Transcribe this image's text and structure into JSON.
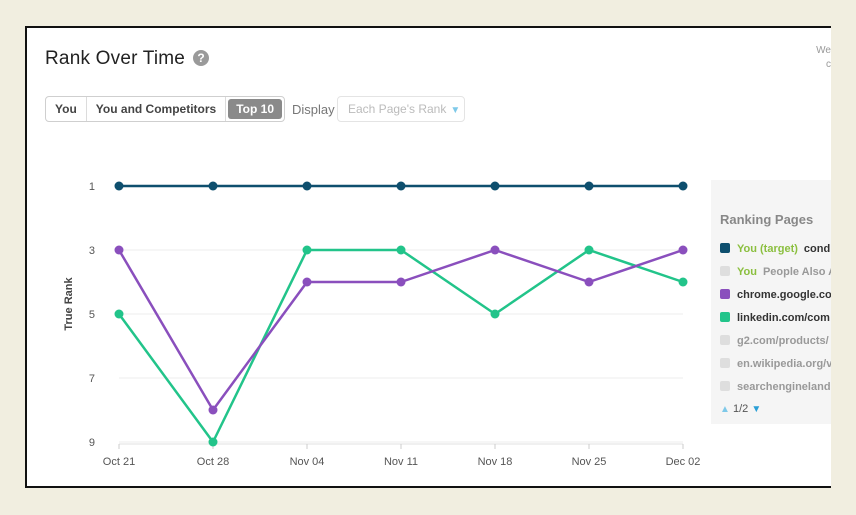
{
  "title": "Rank Over Time",
  "corner_text": [
    "We",
    "c"
  ],
  "toggle": {
    "options": [
      "You",
      "You and Competitors",
      "Top 10"
    ],
    "active": "Top 10"
  },
  "display": {
    "label": "Display",
    "value": "Each Page's Rank"
  },
  "legend": {
    "title": "Ranking Pages",
    "items": [
      {
        "tag": "You (target)",
        "text": "cond",
        "color": "#0e4f6e",
        "enabled": true
      },
      {
        "tag": "You",
        "text": "People Also A",
        "color": "#dedede",
        "enabled": false
      },
      {
        "tag": "",
        "text": "chrome.google.cor",
        "color": "#8a4fbd",
        "enabled": true
      },
      {
        "tag": "",
        "text": "linkedin.com/com",
        "color": "#22c48a",
        "enabled": true
      },
      {
        "tag": "",
        "text": "g2.com/products/",
        "color": "#dedede",
        "enabled": false
      },
      {
        "tag": "",
        "text": "en.wikipedia.org/v",
        "color": "#dedede",
        "enabled": false
      },
      {
        "tag": "",
        "text": "searchengineland.",
        "color": "#dedede",
        "enabled": false
      }
    ],
    "pager": "1/2"
  },
  "chart_data": {
    "type": "line",
    "x": [
      "Oct 21",
      "Oct 28",
      "Nov 04",
      "Nov 11",
      "Nov 18",
      "Nov 25",
      "Dec 02"
    ],
    "ylabel": "True Rank",
    "ylim": [
      1,
      9
    ],
    "y_inverted": true,
    "yticks": [
      1,
      3,
      5,
      7,
      9
    ],
    "series": [
      {
        "name": "You (target) cond",
        "color": "#0e4f6e",
        "values": [
          1,
          1,
          1,
          1,
          1,
          1,
          1
        ]
      },
      {
        "name": "chrome.google.cor",
        "color": "#8a4fbd",
        "values": [
          3,
          8,
          4,
          4,
          3,
          4,
          3
        ]
      },
      {
        "name": "linkedin.com/com",
        "color": "#22c48a",
        "values": [
          5,
          9,
          3,
          3,
          5,
          3,
          4
        ]
      }
    ]
  }
}
